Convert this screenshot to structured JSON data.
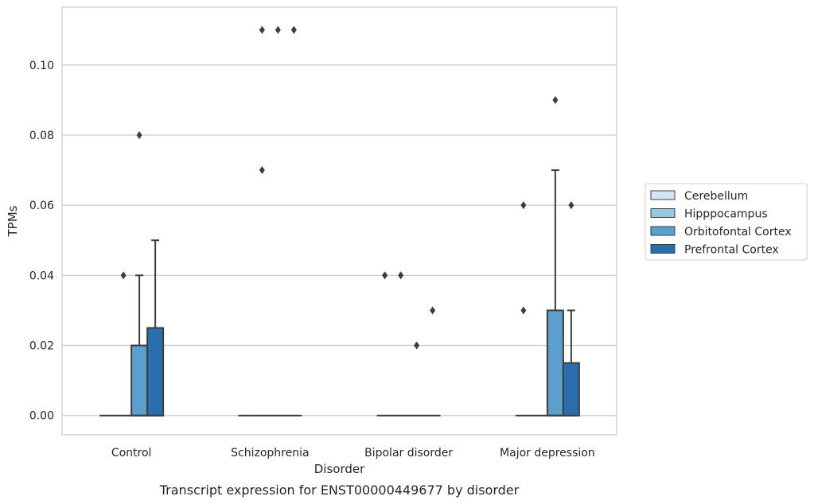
{
  "caption": "Transcript expression for ENST00000449677 by disorder",
  "chart_data": {
    "type": "box",
    "xlabel": "Disorder",
    "ylabel": "TPMs",
    "ylim": [
      -0.0055,
      0.1165
    ],
    "yticks": [
      "0.00",
      "0.02",
      "0.04",
      "0.06",
      "0.08",
      "0.10"
    ],
    "grid": "horizontal",
    "legend_position": "right",
    "categories": [
      "Control",
      "Schizophrenia",
      "Bipolar disorder",
      "Major depression"
    ],
    "series": [
      {
        "name": "Cerebellum",
        "color": "#d2e3f3",
        "boxes": [
          {
            "q1": 0,
            "median": 0,
            "q3": 0,
            "whisker_low": 0,
            "whisker_high": 0,
            "outliers": []
          },
          {
            "q1": 0,
            "median": 0,
            "q3": 0,
            "whisker_low": 0,
            "whisker_high": 0,
            "outliers": []
          },
          {
            "q1": 0,
            "median": 0,
            "q3": 0,
            "whisker_low": 0,
            "whisker_high": 0,
            "outliers": [
              0.04
            ]
          },
          {
            "q1": 0,
            "median": 0,
            "q3": 0,
            "whisker_low": 0,
            "whisker_high": 0,
            "outliers": [
              0.06,
              0.03
            ]
          }
        ]
      },
      {
        "name": "Hipppocampus",
        "color": "#9ac8e0",
        "boxes": [
          {
            "q1": 0,
            "median": 0,
            "q3": 0,
            "whisker_low": 0,
            "whisker_high": 0,
            "outliers": [
              0.04
            ]
          },
          {
            "q1": 0,
            "median": 0,
            "q3": 0,
            "whisker_low": 0,
            "whisker_high": 0,
            "outliers": [
              0.11,
              0.07
            ]
          },
          {
            "q1": 0,
            "median": 0,
            "q3": 0,
            "whisker_low": 0,
            "whisker_high": 0,
            "outliers": [
              0.04
            ]
          },
          {
            "q1": 0,
            "median": 0,
            "q3": 0,
            "whisker_low": 0,
            "whisker_high": 0,
            "outliers": []
          }
        ]
      },
      {
        "name": "Orbitofontal Cortex",
        "color": "#5a9fcd",
        "boxes": [
          {
            "q1": 0,
            "median": 0,
            "q3": 0.02,
            "whisker_low": 0,
            "whisker_high": 0.04,
            "outliers": [
              0.08
            ]
          },
          {
            "q1": 0,
            "median": 0,
            "q3": 0,
            "whisker_low": 0,
            "whisker_high": 0,
            "outliers": [
              0.11
            ]
          },
          {
            "q1": 0,
            "median": 0,
            "q3": 0,
            "whisker_low": 0,
            "whisker_high": 0,
            "outliers": [
              0.02
            ]
          },
          {
            "q1": 0,
            "median": 0,
            "q3": 0.03,
            "whisker_low": 0,
            "whisker_high": 0.07,
            "outliers": [
              0.09
            ]
          }
        ]
      },
      {
        "name": "Prefrontal Cortex",
        "color": "#2b6ead",
        "boxes": [
          {
            "q1": 0,
            "median": 0,
            "q3": 0.025,
            "whisker_low": 0,
            "whisker_high": 0.05,
            "outliers": []
          },
          {
            "q1": 0,
            "median": 0,
            "q3": 0,
            "whisker_low": 0,
            "whisker_high": 0,
            "outliers": [
              0.11
            ]
          },
          {
            "q1": 0,
            "median": 0,
            "q3": 0,
            "whisker_low": 0,
            "whisker_high": 0,
            "outliers": [
              0.03
            ]
          },
          {
            "q1": 0,
            "median": 0,
            "q3": 0.015,
            "whisker_low": 0,
            "whisker_high": 0.03,
            "outliers": [
              0.06
            ]
          }
        ]
      }
    ]
  }
}
